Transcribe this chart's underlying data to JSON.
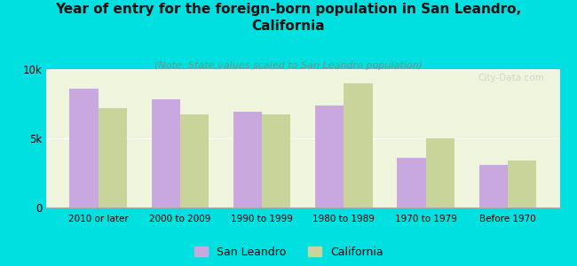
{
  "title": "Year of entry for the foreign-born population in San Leandro,\nCalifornia",
  "subtitle": "(Note: State values scaled to San Leandro population)",
  "categories": [
    "2010 or later",
    "2000 to 2009",
    "1990 to 1999",
    "1980 to 1989",
    "1970 to 1979",
    "Before 1970"
  ],
  "san_leandro": [
    8600,
    7800,
    6900,
    7400,
    3600,
    3100
  ],
  "california": [
    7200,
    6700,
    6700,
    9000,
    5000,
    3400
  ],
  "bar_color_sl": "#c9a8e0",
  "bar_color_ca": "#c8d49a",
  "bg_color_chart": "#eef5dc",
  "bg_outer": "#00e0e0",
  "ylim": [
    0,
    10000
  ],
  "yticks": [
    0,
    5000,
    10000
  ],
  "ytick_labels": [
    "0",
    "5k",
    "10k"
  ],
  "legend_sl": "San Leandro",
  "legend_ca": "California",
  "watermark": "City-Data.com",
  "title_fontsize": 11,
  "subtitle_fontsize": 8,
  "bar_width": 0.35
}
